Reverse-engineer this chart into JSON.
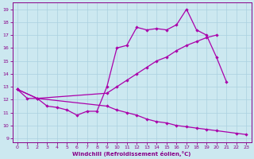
{
  "xlabel": "Windchill (Refroidissement éolien,°C)",
  "bg_color": "#cce8f0",
  "grid_color": "#aad0e0",
  "line_color": "#aa00aa",
  "spine_color": "#880088",
  "tick_color": "#880088",
  "xlim": [
    -0.5,
    23.5
  ],
  "ylim": [
    8.7,
    19.5
  ],
  "xticks": [
    0,
    1,
    2,
    3,
    4,
    5,
    6,
    7,
    8,
    9,
    10,
    11,
    12,
    13,
    14,
    15,
    16,
    17,
    18,
    19,
    20,
    21,
    22,
    23
  ],
  "yticks": [
    9,
    10,
    11,
    12,
    13,
    14,
    15,
    16,
    17,
    18,
    19
  ],
  "line_zigzag_x": [
    0,
    1,
    2,
    3,
    4,
    5,
    6,
    7,
    8,
    9,
    10,
    11,
    12,
    13,
    14,
    15,
    16,
    17,
    18,
    19,
    20,
    21
  ],
  "line_zigzag_y": [
    12.8,
    12.1,
    12.1,
    11.5,
    11.4,
    11.2,
    10.8,
    11.1,
    11.1,
    13.0,
    16.0,
    16.2,
    17.6,
    17.4,
    17.5,
    17.4,
    17.8,
    19.0,
    17.4,
    17.0,
    15.3,
    13.4
  ],
  "line_upper_x": [
    0,
    2,
    9,
    10,
    11,
    12,
    13,
    14,
    15,
    16,
    17,
    18,
    19,
    20
  ],
  "line_upper_y": [
    12.8,
    12.1,
    12.5,
    13.0,
    13.5,
    14.0,
    14.5,
    15.0,
    15.3,
    15.8,
    16.2,
    16.5,
    16.8,
    17.0
  ],
  "line_lower_x": [
    0,
    2,
    9,
    10,
    11,
    12,
    13,
    14,
    15,
    16,
    17,
    18,
    19,
    20,
    22,
    23
  ],
  "line_lower_y": [
    12.8,
    12.1,
    11.5,
    11.2,
    11.0,
    10.8,
    10.5,
    10.3,
    10.2,
    10.0,
    9.9,
    9.8,
    9.7,
    9.6,
    9.4,
    9.3
  ]
}
